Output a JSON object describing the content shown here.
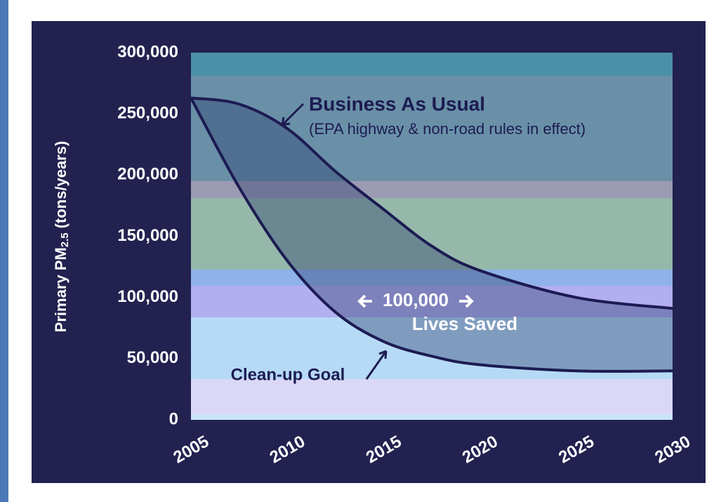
{
  "chart_data": {
    "type": "line",
    "y_label": {
      "main": "Primary PM",
      "sub": "2.5",
      "unit": "(tons/years)"
    },
    "x": [
      2005,
      2007.5,
      2010,
      2012.5,
      2015,
      2017.5,
      2020,
      2025,
      2030
    ],
    "series": [
      {
        "name": "Business As Usual",
        "color": "#1c1b52",
        "values": [
          263000,
          258000,
          238000,
          203000,
          172000,
          142000,
          122000,
          100000,
          91000
        ]
      },
      {
        "name": "Clean-up Goal",
        "color": "#1c1b52",
        "values": [
          263000,
          190000,
          130000,
          88000,
          64000,
          52000,
          45000,
          40000,
          40000
        ]
      }
    ],
    "annotations": {
      "bau_note": "(EPA highway & non-road rules in effect)",
      "saved_number": "100,000",
      "saved_text": "Lives Saved"
    },
    "xlim": [
      2005,
      2030
    ],
    "xticks": [
      2005,
      2010,
      2015,
      2020,
      2025,
      2030
    ],
    "ylim": [
      0,
      300000
    ],
    "yticks": [
      0,
      {
        "value": 50000,
        "label": "50,000"
      },
      {
        "value": 100000,
        "label": "100,000"
      },
      {
        "value": 150000,
        "label": "150,000"
      },
      {
        "value": 200000,
        "label": "200,000"
      },
      {
        "value": 250000,
        "label": "250,000"
      },
      {
        "value": 300000,
        "label": "300,000"
      }
    ],
    "gap_color": "#2e3f6e"
  }
}
